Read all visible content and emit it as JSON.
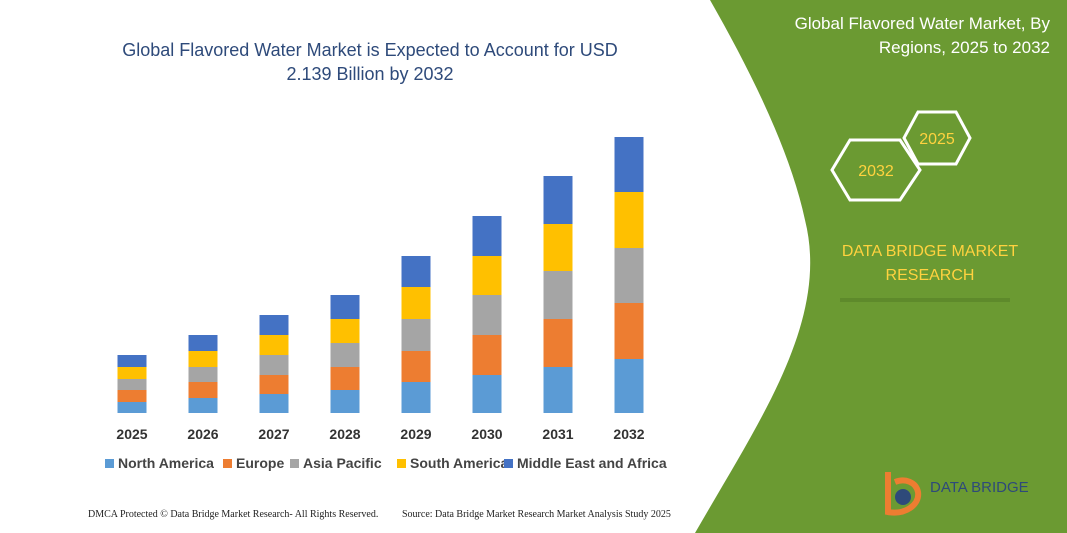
{
  "chart_data": {
    "type": "bar",
    "stacked": true,
    "title": "Global Flavored Water Market is Expected to Account for USD 2.139 Billion by 2032",
    "categories": [
      "2025",
      "2026",
      "2027",
      "2028",
      "2029",
      "2030",
      "2031",
      "2032"
    ],
    "series": [
      {
        "name": "North America",
        "color": "#5b9bd5",
        "values": [
          11,
          15,
          19,
          23,
          31,
          38,
          46,
          54
        ]
      },
      {
        "name": "Europe",
        "color": "#ed7d31",
        "values": [
          12,
          16,
          19,
          23,
          31,
          40,
          48,
          56
        ]
      },
      {
        "name": "Asia Pacific",
        "color": "#a5a5a5",
        "values": [
          11,
          15,
          20,
          24,
          32,
          40,
          48,
          55
        ]
      },
      {
        "name": "South America",
        "color": "#ffc000",
        "values": [
          12,
          16,
          20,
          24,
          32,
          39,
          47,
          56
        ]
      },
      {
        "name": "Middle East and Africa",
        "color": "#4472c4",
        "values": [
          12,
          16,
          20,
          24,
          31,
          40,
          48,
          55
        ]
      }
    ]
  },
  "panel": {
    "title": "Global Flavored Water Market, By Regions, 2025 to 2032",
    "hex_labels": [
      "2032",
      "2025"
    ],
    "brand": "DATA BRIDGE MARKET RESEARCH"
  },
  "logo": "DATA BRIDGE",
  "footer": {
    "left": "DMCA Protected © Data Bridge Market Research- All Rights Reserved.",
    "right": "Source: Data Bridge Market Research Market Analysis Study 2025"
  }
}
